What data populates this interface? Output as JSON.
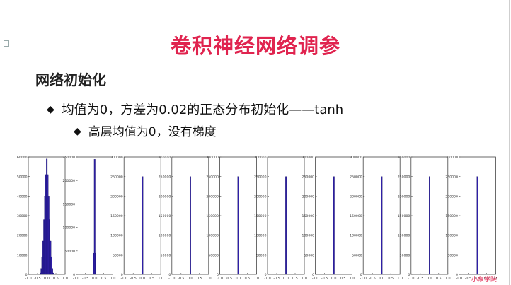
{
  "slide": {
    "title": "卷积神经网络调参",
    "heading": "网络初始化",
    "bullet1": "均值为0，方差为0.02的正态分布初始化——tanh",
    "bullet2": "高层均值为0，没有梯度",
    "bullet_icon": "diamond-bullet",
    "watermark": "小象学院"
  },
  "chart_data": [
    {
      "type": "bar",
      "yticks": [
        "0",
        "10000",
        "20000",
        "30000",
        "40000",
        "50000",
        "60000"
      ],
      "ylim": [
        0,
        60000
      ],
      "xticks": [
        "-1.0",
        "-0.5",
        "0.0",
        "0.5",
        "1.0"
      ],
      "xlim": [
        -1.0,
        1.0
      ],
      "bins": [
        -0.35,
        -0.3,
        -0.25,
        -0.2,
        -0.15,
        -0.1,
        -0.05,
        0.0,
        0.05,
        0.1,
        0.15,
        0.2,
        0.25,
        0.3,
        0.35
      ],
      "values": [
        700,
        3000,
        9000,
        17000,
        28000,
        40000,
        51000,
        59000,
        51000,
        40000,
        28000,
        17000,
        9000,
        3000,
        700
      ],
      "bar_color": "#2f1fa6"
    },
    {
      "type": "bar",
      "yticks": [
        "0",
        "50000",
        "100000",
        "150000",
        "200000",
        "250000"
      ],
      "ylim": [
        0,
        250000
      ],
      "xticks": [
        "-1.0",
        "-0.5",
        "0.0",
        "0.5",
        "1.0"
      ],
      "xlim": [
        -1.0,
        1.0
      ],
      "bins": [
        -0.05,
        0.0,
        0.05
      ],
      "values": [
        45000,
        245000,
        45000
      ],
      "bar_color": "#2f1fa6"
    },
    {
      "type": "bar",
      "yticks": [
        "0",
        "50000",
        "100000",
        "150000",
        "200000",
        "250000",
        "300000"
      ],
      "ylim": [
        0,
        300000
      ],
      "xticks": [
        "-1.0",
        "-0.5",
        "0.0",
        "0.5",
        "1.0"
      ],
      "xlim": [
        -1.0,
        1.0
      ],
      "bins": [
        0.0
      ],
      "values": [
        250000
      ],
      "bar_color": "#2f1fa6"
    },
    {
      "type": "bar",
      "yticks": [
        "0",
        "50000",
        "100000",
        "150000",
        "200000",
        "250000",
        "300000"
      ],
      "ylim": [
        0,
        300000
      ],
      "xticks": [
        "-1.0",
        "-0.5",
        "0.0",
        "0.5",
        "1.0"
      ],
      "xlim": [
        -1.0,
        1.0
      ],
      "bins": [
        0.0
      ],
      "values": [
        250000
      ],
      "bar_color": "#2f1fa6"
    },
    {
      "type": "bar",
      "yticks": [
        "0",
        "50000",
        "100000",
        "150000",
        "200000",
        "250000",
        "300000"
      ],
      "ylim": [
        0,
        300000
      ],
      "xticks": [
        "-1.0",
        "-0.5",
        "0.0",
        "0.5",
        "1.0"
      ],
      "xlim": [
        -1.0,
        1.0
      ],
      "bins": [
        0.0
      ],
      "values": [
        250000
      ],
      "bar_color": "#2f1fa6"
    },
    {
      "type": "bar",
      "yticks": [
        "0",
        "50000",
        "100000",
        "150000",
        "200000",
        "250000",
        "300000"
      ],
      "ylim": [
        0,
        300000
      ],
      "xticks": [
        "-1.0",
        "-0.5",
        "0.0",
        "0.5",
        "1.0"
      ],
      "xlim": [
        -1.0,
        1.0
      ],
      "bins": [
        0.0
      ],
      "values": [
        250000
      ],
      "bar_color": "#2f1fa6"
    },
    {
      "type": "bar",
      "yticks": [
        "0",
        "50000",
        "100000",
        "150000",
        "200000",
        "250000",
        "300000"
      ],
      "ylim": [
        0,
        300000
      ],
      "xticks": [
        "-1.0",
        "-0.5",
        "0.0",
        "0.5",
        "1.0"
      ],
      "xlim": [
        -1.0,
        1.0
      ],
      "bins": [
        0.0
      ],
      "values": [
        250000
      ],
      "bar_color": "#2f1fa6"
    },
    {
      "type": "bar",
      "yticks": [
        "0",
        "50000",
        "100000",
        "150000",
        "200000",
        "250000",
        "300000"
      ],
      "ylim": [
        0,
        300000
      ],
      "xticks": [
        "-1.0",
        "-0.5",
        "0.0",
        "0.5",
        "1.0"
      ],
      "xlim": [
        -1.0,
        1.0
      ],
      "bins": [
        0.0
      ],
      "values": [
        250000
      ],
      "bar_color": "#2f1fa6"
    },
    {
      "type": "bar",
      "yticks": [
        "0",
        "50000",
        "100000",
        "150000",
        "200000",
        "250000",
        "300000"
      ],
      "ylim": [
        0,
        300000
      ],
      "xticks": [
        "-1.0",
        "-0.5",
        "0.0",
        "0.5",
        "1.0"
      ],
      "xlim": [
        -1.0,
        1.0
      ],
      "bins": [
        0.0
      ],
      "values": [
        250000
      ],
      "bar_color": "#2f1fa6"
    },
    {
      "type": "bar",
      "yticks": [
        "0",
        "50000",
        "100000",
        "150000",
        "200000",
        "250000",
        "300000"
      ],
      "ylim": [
        0,
        300000
      ],
      "xticks": [
        "-1.0",
        "-0.5",
        "0.0",
        "0.5",
        "1.0"
      ],
      "xlim": [
        -1.0,
        1.0
      ],
      "bins": [
        0.0
      ],
      "values": [
        250000
      ],
      "bar_color": "#2f1fa6"
    }
  ]
}
